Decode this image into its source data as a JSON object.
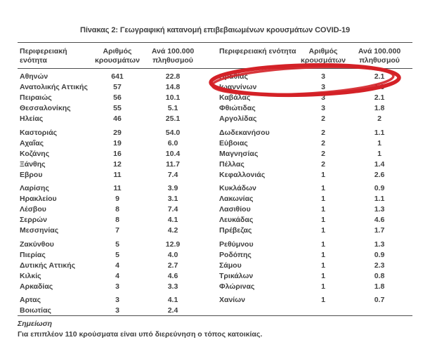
{
  "title": "Πίνακας 2: Γεωγραφική κατανομή επιβεβαιωμένων κρουσμάτων COVID-19",
  "table": {
    "headers": {
      "region": "Περιφερειακή ενότητα",
      "cases_line1": "Αριθμός",
      "cases_line2": "κρουσμάτων",
      "rate_line1": "Ανά 100.000",
      "rate_line2": "πληθυσμού"
    },
    "left_groups": [
      [
        [
          "Αθηνών",
          "641",
          "22.8"
        ],
        [
          "Ανατολικής Αττικής",
          "57",
          "14.8"
        ],
        [
          "Πειραιώς",
          "56",
          "10.1"
        ],
        [
          "Θεσσαλονίκης",
          "55",
          "5.1"
        ],
        [
          "Ηλείας",
          "46",
          "25.1"
        ]
      ],
      [
        [
          "Καστοριάς",
          "29",
          "54.0"
        ],
        [
          "Αχαΐας",
          "19",
          "6.0"
        ],
        [
          "Κοζάνης",
          "16",
          "10.4"
        ],
        [
          "Ξάνθης",
          "12",
          "11.7"
        ],
        [
          "Εβρου",
          "11",
          "7.4"
        ]
      ],
      [
        [
          "Λαρίσης",
          "11",
          "3.9"
        ],
        [
          "Ηρακλείου",
          "9",
          "3.1"
        ],
        [
          "Λέσβου",
          "8",
          "7.4"
        ],
        [
          "Σερρών",
          "8",
          "4.1"
        ],
        [
          "Μεσσηνίας",
          "7",
          "4.2"
        ]
      ],
      [
        [
          "Ζακύνθου",
          "5",
          "12.9"
        ],
        [
          "Πιερίας",
          "5",
          "4.0"
        ],
        [
          "Δυτικής Αττικής",
          "4",
          "2.7"
        ],
        [
          "Κιλκίς",
          "4",
          "4.6"
        ],
        [
          "Αρκαδίας",
          "3",
          "3.3"
        ]
      ],
      [
        [
          "Αρτας",
          "3",
          "4.1"
        ],
        [
          "Βοιωτίας",
          "3",
          "2.4"
        ]
      ]
    ],
    "right_groups": [
      [
        [
          "Ημαθίας",
          "3",
          "2.1"
        ],
        [
          "Ιωαννίνων",
          "3",
          "1.9"
        ],
        [
          "Καβάλας",
          "3",
          "2.1"
        ],
        [
          "Φθιώτιδας",
          "3",
          "1.8"
        ],
        [
          "Αργολίδας",
          "2",
          "2"
        ]
      ],
      [
        [
          "Δωδεκανήσου",
          "2",
          "1.1"
        ],
        [
          "Εύβοιας",
          "2",
          "1"
        ],
        [
          "Μαγνησίας",
          "2",
          "1"
        ],
        [
          "Πέλλας",
          "2",
          "1.4"
        ],
        [
          "Κεφαλλονιάς",
          "1",
          "2.6"
        ]
      ],
      [
        [
          "Κυκλάδων",
          "1",
          "0.9"
        ],
        [
          "Λακωνίας",
          "1",
          "1.1"
        ],
        [
          "Λασιθίου",
          "1",
          "1.3"
        ],
        [
          "Λευκάδας",
          "1",
          "4.6"
        ],
        [
          "Πρέβεζας",
          "1",
          "1.7"
        ]
      ],
      [
        [
          "Ρεθύμνου",
          "1",
          "1.3"
        ],
        [
          "Ροδόπης",
          "1",
          "0.9"
        ],
        [
          "Σάμου",
          "1",
          "2.3"
        ],
        [
          "Τρικάλων",
          "1",
          "0.8"
        ],
        [
          "Φλώρινας",
          "1",
          "1.8"
        ]
      ],
      [
        [
          "Χανίων",
          "1",
          "0.7"
        ]
      ]
    ]
  },
  "annotation": {
    "type": "hand-drawn-ellipse",
    "highlighted_row": "Ημαθίας",
    "color": "#d42127"
  },
  "footer": {
    "note_label": "Σημείωση",
    "note_text": "Για επιπλέον 110 κρούσματα είναι υπό διερεύνηση ο τόπος κατοικίας."
  }
}
